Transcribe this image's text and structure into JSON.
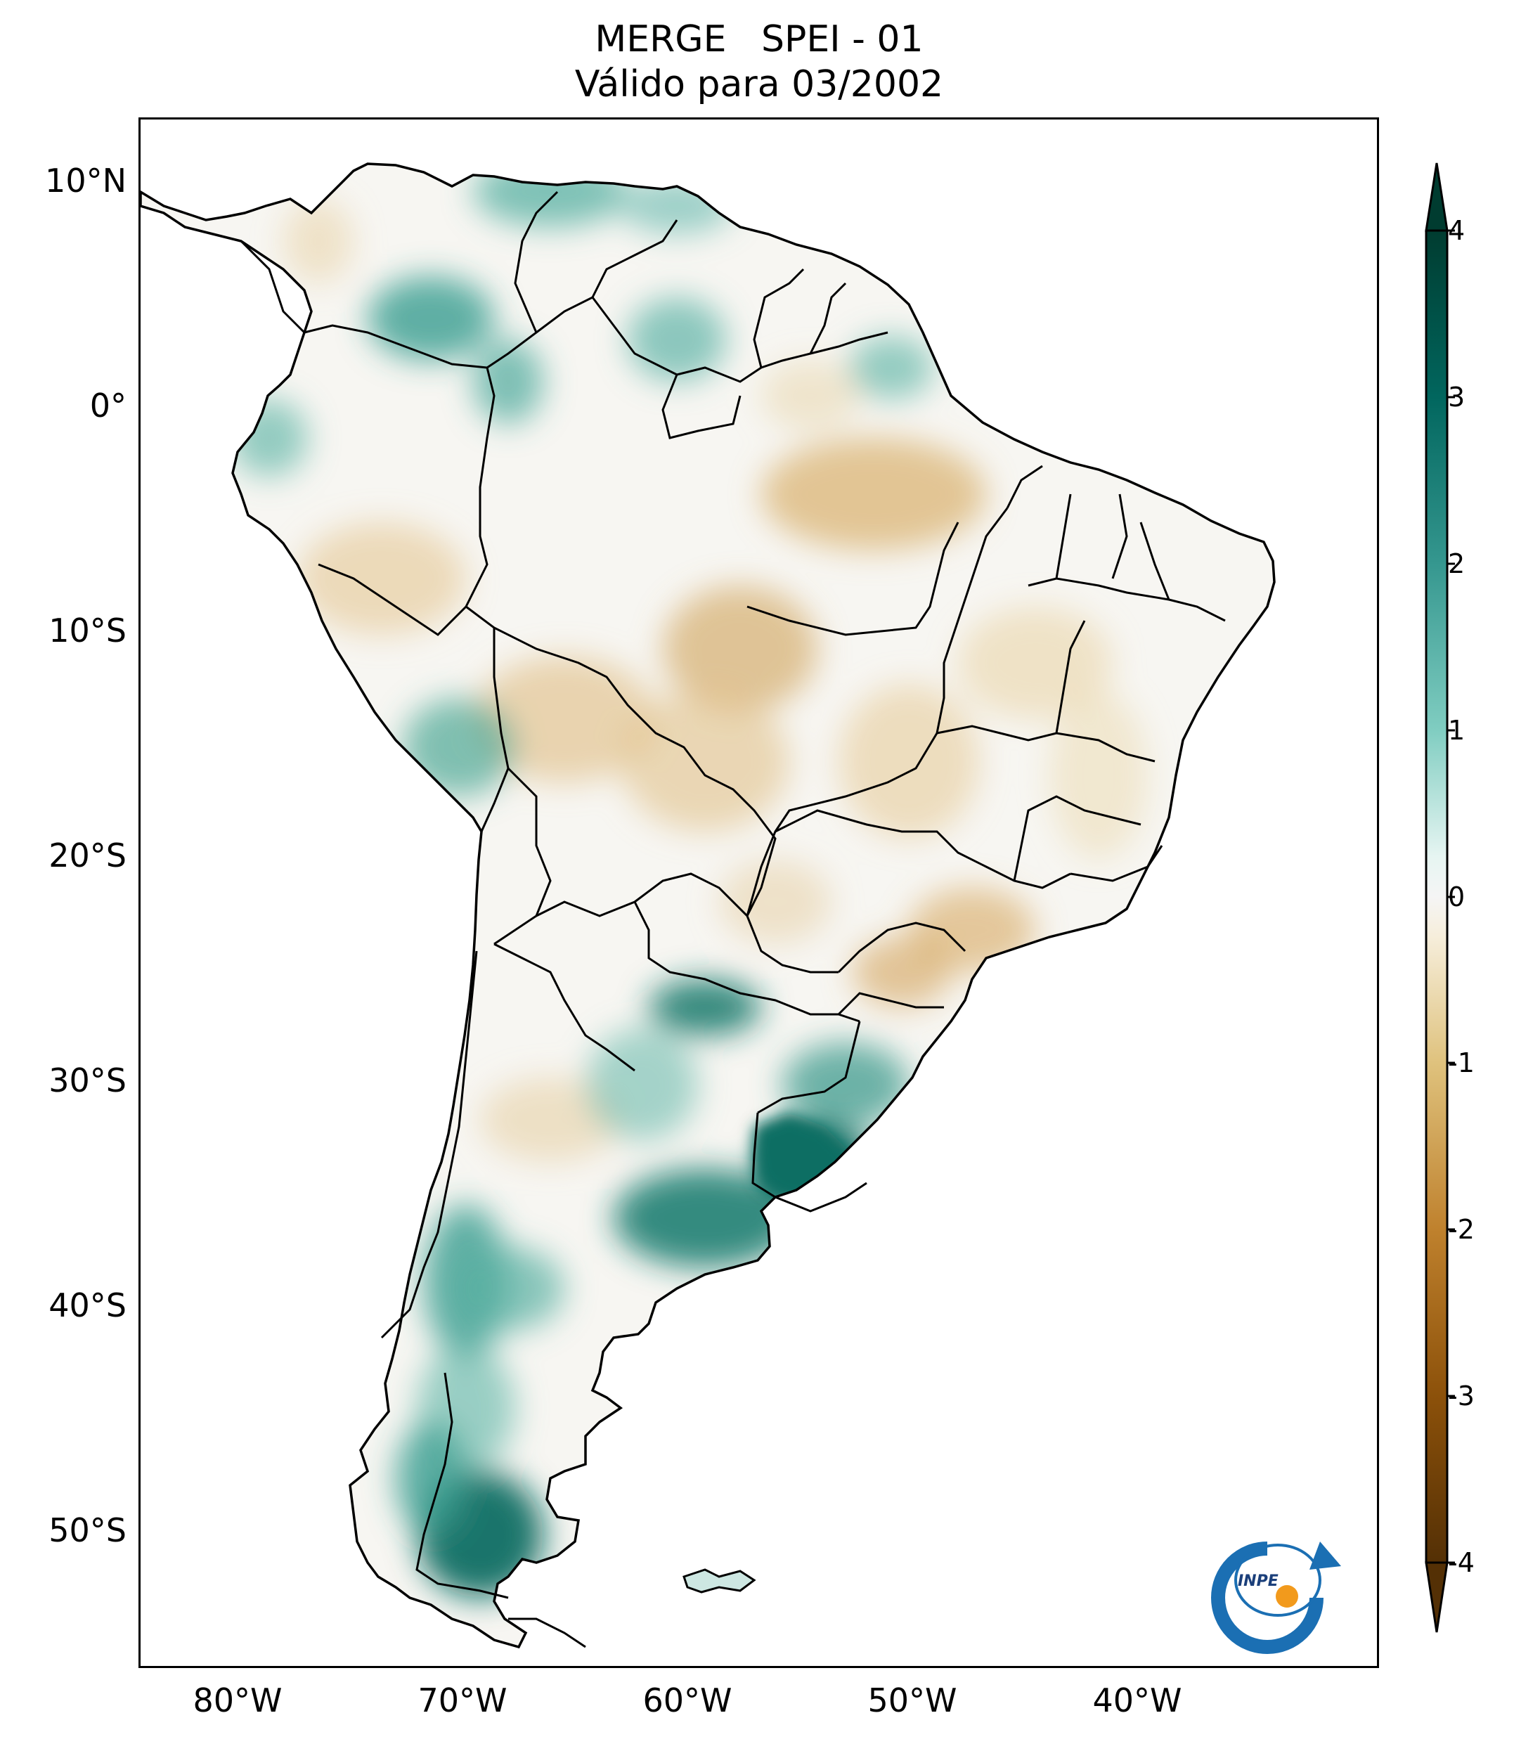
{
  "title": {
    "line1": "MERGE   SPEI - 01",
    "line2": "Válido para 03/2002"
  },
  "map": {
    "region": "South America",
    "latitude_labels": [
      "10°N",
      "0°",
      "10°S",
      "20°S",
      "30°S",
      "40°S",
      "50°S"
    ],
    "longitude_labels": [
      "80°W",
      "70°W",
      "60°W",
      "50°W",
      "40°W"
    ],
    "colormap": "BrBG",
    "colors": {
      "strong_wet": "#0f6e63",
      "moderate_wet": "#3a9e90",
      "mild_wet": "#9fd8cd",
      "neutral": "#f6f6f4",
      "mild_dry": "#ecd9ad",
      "moderate_dry": "#d3a864",
      "strong_dry": "#8c510a",
      "border": "#000000"
    }
  },
  "colorbar": {
    "ticks": [
      "4",
      "3",
      "2",
      "1",
      "0",
      "-1",
      "-2",
      "-3",
      "-4"
    ],
    "min": -4,
    "max": 4,
    "extend": "both"
  },
  "logo": {
    "text": "INPE",
    "icon": "inpe-logo-icon"
  }
}
